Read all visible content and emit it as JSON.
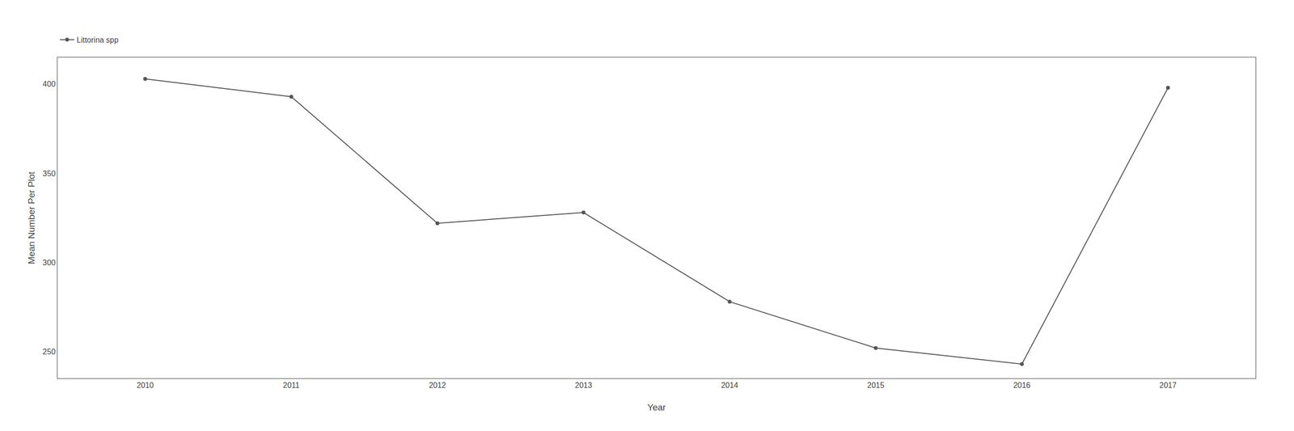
{
  "chart_data": {
    "type": "line",
    "xlabel": "Year",
    "ylabel": "Mean Number Per Plot",
    "x": [
      2010,
      2011,
      2012,
      2013,
      2014,
      2015,
      2016,
      2017
    ],
    "series": [
      {
        "name": "Littorina spp",
        "color": "#555555",
        "marker": "circle",
        "values": [
          403,
          393,
          322,
          328,
          278,
          252,
          243,
          398
        ]
      }
    ],
    "xlim": [
      2009.4,
      2017.6
    ],
    "xticks": [
      2010,
      2011,
      2012,
      2013,
      2014,
      2015,
      2016,
      2017
    ],
    "ylim": [
      235,
      415
    ],
    "yticks": [
      250,
      300,
      350,
      400
    ],
    "grid": false,
    "legend": "top left"
  }
}
